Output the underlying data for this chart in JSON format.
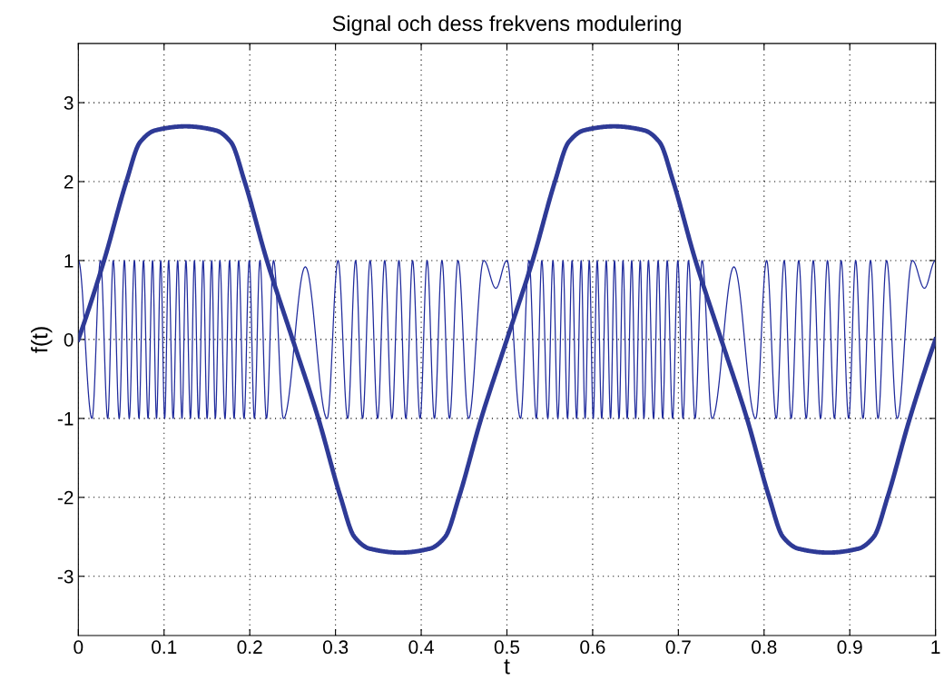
{
  "chart_data": {
    "type": "line",
    "title": "Signal och dess frekvens modulering",
    "xlabel": "t",
    "ylabel": "f(t)",
    "xlim": [
      0,
      1
    ],
    "ylim": [
      -3.75,
      3.75
    ],
    "xticks": [
      0,
      0.1,
      0.2,
      0.3,
      0.4,
      0.5,
      0.6,
      0.7,
      0.8,
      0.9,
      1
    ],
    "yticks": [
      -3,
      -2,
      -1,
      0,
      1,
      2,
      3
    ],
    "grid": true,
    "line_style": "solid",
    "marker": "none",
    "series": [
      {
        "color": "#2e3a96",
        "x": [
          0,
          0.03,
          0.056,
          0.072,
          0.09,
          0.125,
          0.16,
          0.178,
          0.194,
          0.22,
          0.25,
          0.28,
          0.306,
          0.322,
          0.34,
          0.375,
          0.41,
          0.428,
          0.444,
          0.47,
          0.5,
          0.53,
          0.556,
          0.572,
          0.59,
          0.625,
          0.66,
          0.678,
          0.694,
          0.72,
          0.75,
          0.78,
          0.806,
          0.822,
          0.84,
          0.875,
          0.91,
          0.928,
          0.944,
          0.97,
          1
        ],
        "values": [
          0,
          1,
          2,
          2.5,
          2.65,
          2.7,
          2.65,
          2.5,
          2,
          1,
          0,
          -1,
          -2,
          -2.5,
          -2.65,
          -2.7,
          -2.65,
          -2.5,
          -2,
          -1,
          0,
          1,
          2,
          2.5,
          2.65,
          2.7,
          2.65,
          2.5,
          2,
          1,
          0,
          -1,
          -2,
          -2.5,
          -2.65,
          -2.7,
          -2.65,
          -2.5,
          -2,
          -1,
          0
        ]
      },
      {
        "color": "#1f2a9c",
        "x": [
          0,
          0.0159,
          0.0258,
          0.0343,
          0.0407,
          0.0477,
          0.0537,
          0.0594,
          0.0654,
          0.0707,
          0.076,
          0.0813,
          0.0866,
          0.0912,
          0.0961,
          0.1007,
          0.1053,
          0.1106,
          0.1159,
          0.1209,
          0.1255,
          0.1308,
          0.1354,
          0.1403,
          0.1456,
          0.1502,
          0.1556,
          0.1598,
          0.1651,
          0.1711,
          0.1764,
          0.1817,
          0.187,
          0.1933,
          0.1994,
          0.2054,
          0.2118,
          0.2195,
          0.2277,
          0.2393,
          0.2648,
          0.2902,
          0.303,
          0.3142,
          0.3235,
          0.3316,
          0.3404,
          0.3492,
          0.3574,
          0.3659,
          0.374,
          0.3821,
          0.3899,
          0.3987,
          0.4069,
          0.4154,
          0.4242,
          0.433,
          0.4429,
          0.4553,
          0.473,
          0.4871,
          0.5,
          0.5159,
          0.5258,
          0.5343,
          0.5407,
          0.5477,
          0.5537,
          0.5594,
          0.5654,
          0.5707,
          0.576,
          0.5813,
          0.5866,
          0.5912,
          0.5961,
          0.6007,
          0.6053,
          0.6106,
          0.6159,
          0.6209,
          0.6255,
          0.6308,
          0.6354,
          0.6403,
          0.6456,
          0.6502,
          0.6556,
          0.6598,
          0.6651,
          0.6711,
          0.6764,
          0.6817,
          0.687,
          0.6933,
          0.6994,
          0.7054,
          0.7118,
          0.7195,
          0.7277,
          0.7393,
          0.7648,
          0.7902,
          0.803,
          0.8142,
          0.8235,
          0.8316,
          0.8404,
          0.8492,
          0.8574,
          0.8659,
          0.874,
          0.8821,
          0.8899,
          0.8987,
          0.9069,
          0.9154,
          0.9242,
          0.933,
          0.9429,
          0.9553,
          0.973,
          0.9871,
          1
        ],
        "values": [
          1,
          -1,
          1,
          -1,
          1,
          -1,
          1,
          -1,
          1,
          -1,
          1,
          -1,
          1,
          -1,
          1,
          -1,
          1,
          -1,
          1,
          -1,
          1,
          -1,
          1,
          -1,
          1,
          -1,
          1,
          -1,
          1,
          -1,
          1,
          -1,
          1,
          -1,
          1,
          -1,
          1,
          -1,
          1,
          -1,
          0.92,
          -1,
          1,
          -1,
          1,
          -1,
          1,
          -1,
          1,
          -1,
          1,
          -1,
          1,
          -1,
          1,
          -1,
          1,
          -1,
          1,
          -1,
          1,
          0.65,
          1,
          -1,
          1,
          -1,
          1,
          -1,
          1,
          -1,
          1,
          -1,
          1,
          -1,
          1,
          -1,
          1,
          -1,
          1,
          -1,
          1,
          -1,
          1,
          -1,
          1,
          -1,
          1,
          -1,
          1,
          -1,
          1,
          -1,
          1,
          -1,
          1,
          -1,
          1,
          -1,
          1,
          -1,
          1,
          -1,
          0.92,
          -1,
          1,
          -1,
          1,
          -1,
          1,
          -1,
          1,
          -1,
          1,
          -1,
          1,
          -1,
          1,
          -1,
          1,
          -1,
          1,
          -1,
          1,
          0.65,
          1
        ]
      }
    ]
  }
}
